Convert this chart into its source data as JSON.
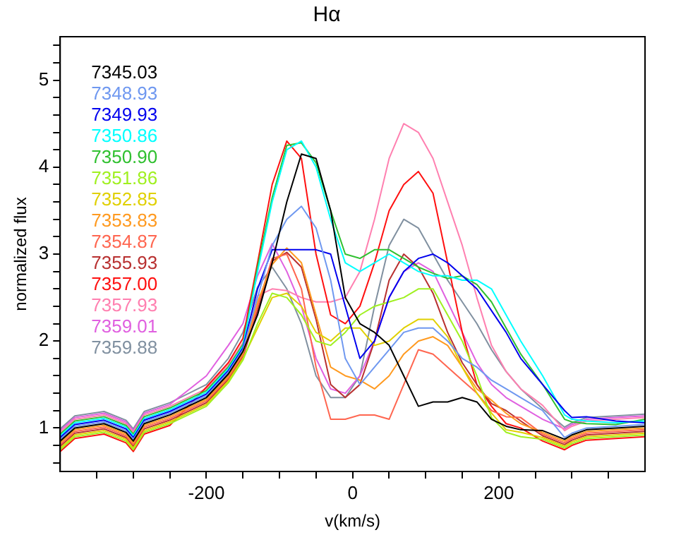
{
  "chart_data": {
    "type": "line",
    "title": "Hα",
    "xlabel": "v(km/s)",
    "ylabel": "normalized flux",
    "x": [
      -400,
      -380,
      -340,
      -310,
      -300,
      -285,
      -250,
      -200,
      -170,
      -150,
      -130,
      -110,
      -90,
      -70,
      -50,
      -30,
      -10,
      10,
      30,
      50,
      70,
      90,
      110,
      130,
      150,
      170,
      190,
      210,
      230,
      260,
      290,
      300,
      320,
      360,
      400
    ],
    "xlim": [
      -400,
      400
    ],
    "xticks": [
      {
        "value": -350,
        "label": null
      },
      {
        "value": -300,
        "label": null
      },
      {
        "value": -250,
        "label": null
      },
      -200,
      {
        "value": -150,
        "label": null
      },
      {
        "value": -100,
        "label": null
      },
      {
        "value": -50,
        "label": null
      },
      0,
      {
        "value": 50,
        "label": null
      },
      {
        "value": 100,
        "label": null
      },
      {
        "value": 150,
        "label": null
      },
      200,
      {
        "value": 250,
        "label": null
      },
      {
        "value": 300,
        "label": null
      },
      {
        "value": 350,
        "label": null
      }
    ],
    "ylim": [
      0.5,
      5.5
    ],
    "yticks": [
      {
        "value": 0.6,
        "label": null
      },
      {
        "value": 0.8,
        "label": null
      },
      1,
      {
        "value": 1.2,
        "label": null
      },
      {
        "value": 1.4,
        "label": null
      },
      {
        "value": 1.6,
        "label": null
      },
      {
        "value": 1.8,
        "label": null
      },
      2,
      {
        "value": 2.2,
        "label": null
      },
      {
        "value": 2.4,
        "label": null
      },
      {
        "value": 2.6,
        "label": null
      },
      {
        "value": 2.8,
        "label": null
      },
      3,
      {
        "value": 3.2,
        "label": null
      },
      {
        "value": 3.4,
        "label": null
      },
      {
        "value": 3.6,
        "label": null
      },
      {
        "value": 3.8,
        "label": null
      },
      4,
      {
        "value": 4.2,
        "label": null
      },
      {
        "value": 4.4,
        "label": null
      },
      {
        "value": 4.6,
        "label": null
      },
      {
        "value": 4.8,
        "label": null
      },
      5,
      {
        "value": 5.2,
        "label": null
      },
      {
        "value": 5.4,
        "label": null
      }
    ],
    "grid": false,
    "legend": "top left",
    "marker": "none",
    "line_style": "solid",
    "series": [
      {
        "name": "7345.03",
        "color": "#000000",
        "values": [
          0.85,
          1.0,
          1.05,
          0.95,
          0.85,
          1.05,
          1.15,
          1.35,
          1.62,
          1.88,
          2.3,
          2.9,
          3.6,
          4.15,
          4.1,
          3.5,
          2.5,
          2.2,
          2.1,
          1.95,
          1.6,
          1.25,
          1.3,
          1.3,
          1.35,
          1.3,
          1.1,
          1.02,
          0.98,
          0.97,
          0.87,
          0.92,
          0.98,
          1.0,
          1.02
        ]
      },
      {
        "name": "7348.93",
        "color": "#6f98f0",
        "values": [
          0.87,
          1.02,
          1.07,
          0.97,
          0.87,
          1.07,
          1.17,
          1.37,
          1.64,
          1.9,
          2.5,
          3.1,
          3.4,
          3.55,
          3.3,
          2.7,
          1.8,
          1.5,
          1.7,
          1.9,
          2.1,
          2.15,
          2.15,
          2.0,
          1.8,
          1.7,
          1.55,
          1.45,
          1.35,
          1.2,
          0.89,
          0.94,
          1.0,
          1.02,
          1.04
        ]
      },
      {
        "name": "7349.93",
        "color": "#0000ee",
        "values": [
          0.89,
          1.04,
          1.09,
          0.99,
          0.89,
          1.09,
          1.19,
          1.39,
          1.66,
          1.92,
          2.6,
          3.05,
          3.05,
          3.05,
          3.05,
          3.0,
          2.4,
          1.8,
          2.0,
          2.5,
          2.8,
          2.95,
          3.0,
          2.9,
          2.75,
          2.6,
          2.35,
          2.1,
          1.8,
          1.5,
          1.2,
          1.12,
          1.13,
          1.08,
          1.06
        ]
      },
      {
        "name": "7350.86",
        "color": "#00ffff",
        "values": [
          0.91,
          1.06,
          1.11,
          1.01,
          0.91,
          1.11,
          1.21,
          1.41,
          1.68,
          1.94,
          2.8,
          3.6,
          4.2,
          4.3,
          4.0,
          3.4,
          2.9,
          2.8,
          2.9,
          3.0,
          2.9,
          2.8,
          2.75,
          2.75,
          2.7,
          2.7,
          2.6,
          2.3,
          2.0,
          1.6,
          1.15,
          1.1,
          1.08,
          1.06,
          1.08
        ]
      },
      {
        "name": "7350.90",
        "color": "#30c030",
        "values": [
          0.93,
          1.08,
          1.13,
          1.03,
          0.93,
          1.13,
          1.23,
          1.43,
          1.7,
          1.96,
          2.85,
          3.65,
          4.25,
          4.28,
          4.05,
          3.5,
          3.0,
          2.95,
          3.05,
          3.05,
          2.95,
          2.85,
          2.78,
          2.72,
          2.75,
          2.65,
          2.45,
          2.15,
          1.85,
          1.5,
          1.1,
          1.07,
          1.05,
          1.04,
          1.1
        ]
      },
      {
        "name": "7351.86",
        "color": "#a0f020",
        "values": [
          0.75,
          0.9,
          0.95,
          0.85,
          0.75,
          0.95,
          1.05,
          1.25,
          1.52,
          1.78,
          2.2,
          2.55,
          2.5,
          2.3,
          2.0,
          1.95,
          2.1,
          2.3,
          2.4,
          2.45,
          2.5,
          2.6,
          2.6,
          2.3,
          2.0,
          1.6,
          1.12,
          0.95,
          0.9,
          0.87,
          0.77,
          0.82,
          0.88,
          0.9,
          0.92
        ]
      },
      {
        "name": "7352.85",
        "color": "#e0d000",
        "values": [
          0.77,
          0.92,
          0.97,
          0.87,
          0.77,
          0.97,
          1.07,
          1.27,
          1.54,
          1.8,
          2.15,
          2.5,
          2.55,
          2.4,
          2.1,
          2.0,
          2.15,
          2.15,
          1.95,
          2.0,
          2.15,
          2.25,
          2.25,
          2.05,
          1.7,
          1.4,
          1.17,
          0.98,
          0.95,
          0.89,
          0.79,
          0.84,
          0.9,
          0.92,
          0.94
        ]
      },
      {
        "name": "7353.83",
        "color": "#ff9a20",
        "values": [
          0.83,
          0.98,
          1.03,
          0.93,
          0.83,
          1.03,
          1.13,
          1.33,
          1.6,
          1.86,
          2.45,
          2.88,
          3.07,
          2.9,
          2.3,
          1.7,
          1.6,
          1.55,
          1.45,
          1.6,
          1.85,
          2.0,
          2.05,
          1.95,
          1.7,
          1.45,
          1.32,
          1.17,
          1.05,
          0.95,
          0.85,
          0.9,
          0.96,
          0.98,
          1.0
        ]
      },
      {
        "name": "7354.87",
        "color": "#ff6650",
        "values": [
          0.81,
          0.96,
          1.01,
          0.91,
          0.81,
          1.01,
          1.11,
          1.31,
          1.58,
          1.84,
          2.4,
          2.95,
          3.0,
          2.6,
          1.7,
          1.1,
          1.1,
          1.15,
          1.15,
          1.1,
          1.5,
          1.9,
          1.85,
          1.7,
          1.55,
          1.4,
          1.2,
          1.13,
          1.12,
          0.93,
          0.83,
          0.88,
          0.94,
          0.96,
          0.98
        ]
      },
      {
        "name": "7355.93",
        "color": "#b83030",
        "values": [
          0.79,
          0.94,
          0.99,
          0.89,
          0.79,
          0.99,
          1.09,
          1.29,
          1.56,
          1.82,
          2.35,
          2.92,
          3.02,
          2.85,
          2.25,
          1.5,
          1.35,
          1.5,
          2.0,
          2.7,
          3.0,
          2.85,
          2.55,
          2.1,
          1.75,
          1.5,
          1.28,
          1.2,
          1.08,
          0.91,
          0.81,
          0.86,
          0.92,
          0.94,
          0.96
        ]
      },
      {
        "name": "7357.00",
        "color": "#ff1010",
        "values": [
          0.73,
          0.88,
          0.93,
          0.83,
          0.73,
          0.93,
          1.03,
          1.47,
          1.75,
          2.03,
          2.9,
          3.8,
          4.3,
          4.1,
          3.0,
          2.3,
          2.2,
          2.4,
          2.9,
          3.5,
          3.8,
          3.95,
          3.7,
          2.9,
          2.1,
          1.5,
          1.25,
          1.05,
          1.0,
          0.85,
          0.75,
          0.8,
          0.86,
          0.88,
          0.9
        ]
      },
      {
        "name": "7357.93",
        "color": "#ff80b0",
        "values": [
          0.95,
          1.1,
          1.15,
          1.05,
          0.95,
          1.15,
          1.25,
          1.45,
          1.72,
          1.98,
          2.52,
          2.6,
          2.58,
          2.5,
          2.45,
          2.45,
          2.5,
          2.8,
          3.4,
          4.1,
          4.5,
          4.4,
          4.1,
          3.6,
          3.1,
          2.5,
          1.95,
          1.65,
          1.45,
          1.26,
          0.97,
          1.02,
          1.08,
          1.1,
          1.12
        ]
      },
      {
        "name": "7359.01",
        "color": "#e060e0",
        "values": [
          0.97,
          1.12,
          1.17,
          1.07,
          0.97,
          1.17,
          1.27,
          1.6,
          1.95,
          2.2,
          2.75,
          3.12,
          2.8,
          2.4,
          1.8,
          1.45,
          1.4,
          1.6,
          2.0,
          2.5,
          2.8,
          2.9,
          2.8,
          2.45,
          2.1,
          1.75,
          1.5,
          1.35,
          1.25,
          1.1,
          0.99,
          1.04,
          1.1,
          1.12,
          1.14
        ]
      },
      {
        "name": "7359.88",
        "color": "#8090a0",
        "values": [
          0.99,
          1.14,
          1.19,
          1.09,
          0.99,
          1.19,
          1.29,
          1.5,
          1.8,
          2.1,
          2.62,
          2.85,
          2.6,
          2.2,
          1.6,
          1.35,
          1.35,
          1.6,
          2.4,
          3.1,
          3.4,
          3.3,
          3.0,
          2.7,
          2.45,
          2.2,
          1.9,
          1.65,
          1.45,
          1.22,
          1.01,
          1.06,
          1.12,
          1.14,
          1.16
        ]
      }
    ]
  }
}
